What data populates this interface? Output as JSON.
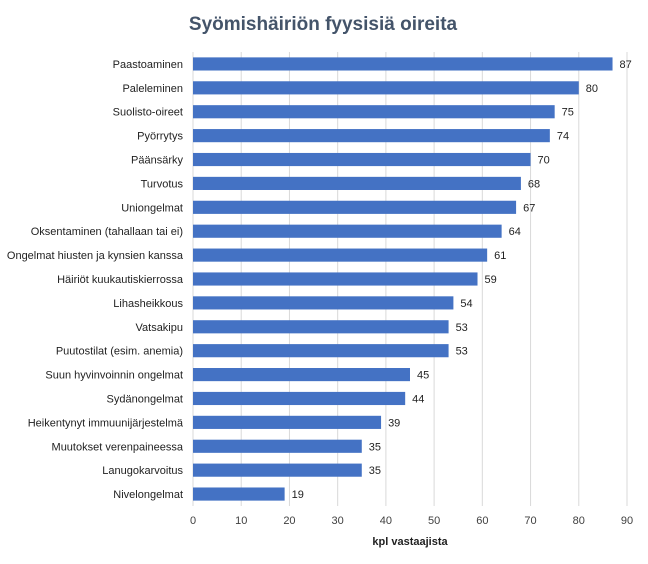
{
  "chart_data": {
    "type": "bar",
    "orientation": "horizontal",
    "title": "Syömishäiriön  fyysisiä oireita",
    "xlabel": "kpl vastaajista",
    "ylabel": "",
    "xlim": [
      0,
      90
    ],
    "xticks": [
      0,
      10,
      20,
      30,
      40,
      50,
      60,
      70,
      80,
      90
    ],
    "grid": "vertical",
    "bar_color": "#4472c4",
    "categories": [
      "Paastoaminen",
      "Paleleminen",
      "Suolisto-oireet",
      "Pyörrytys",
      "Päänsärky",
      "Turvotus",
      "Uniongelmat",
      "Oksentaminen (tahallaan tai ei)",
      "Ongelmat hiusten ja kynsien kanssa",
      "Häiriöt kuukautiskierrossa",
      "Lihasheikkous",
      "Vatsakipu",
      "Puutostilat (esim. anemia)",
      "Suun hyvinvoinnin ongelmat",
      "Sydänongelmat",
      "Heikentynyt immuunijärjestelmä",
      "Muutokset verenpaineessa",
      "Lanugokarvoitus",
      "Nivelongelmat"
    ],
    "values": [
      87,
      80,
      75,
      74,
      70,
      68,
      67,
      64,
      61,
      59,
      54,
      53,
      53,
      45,
      44,
      39,
      35,
      35,
      19
    ]
  }
}
